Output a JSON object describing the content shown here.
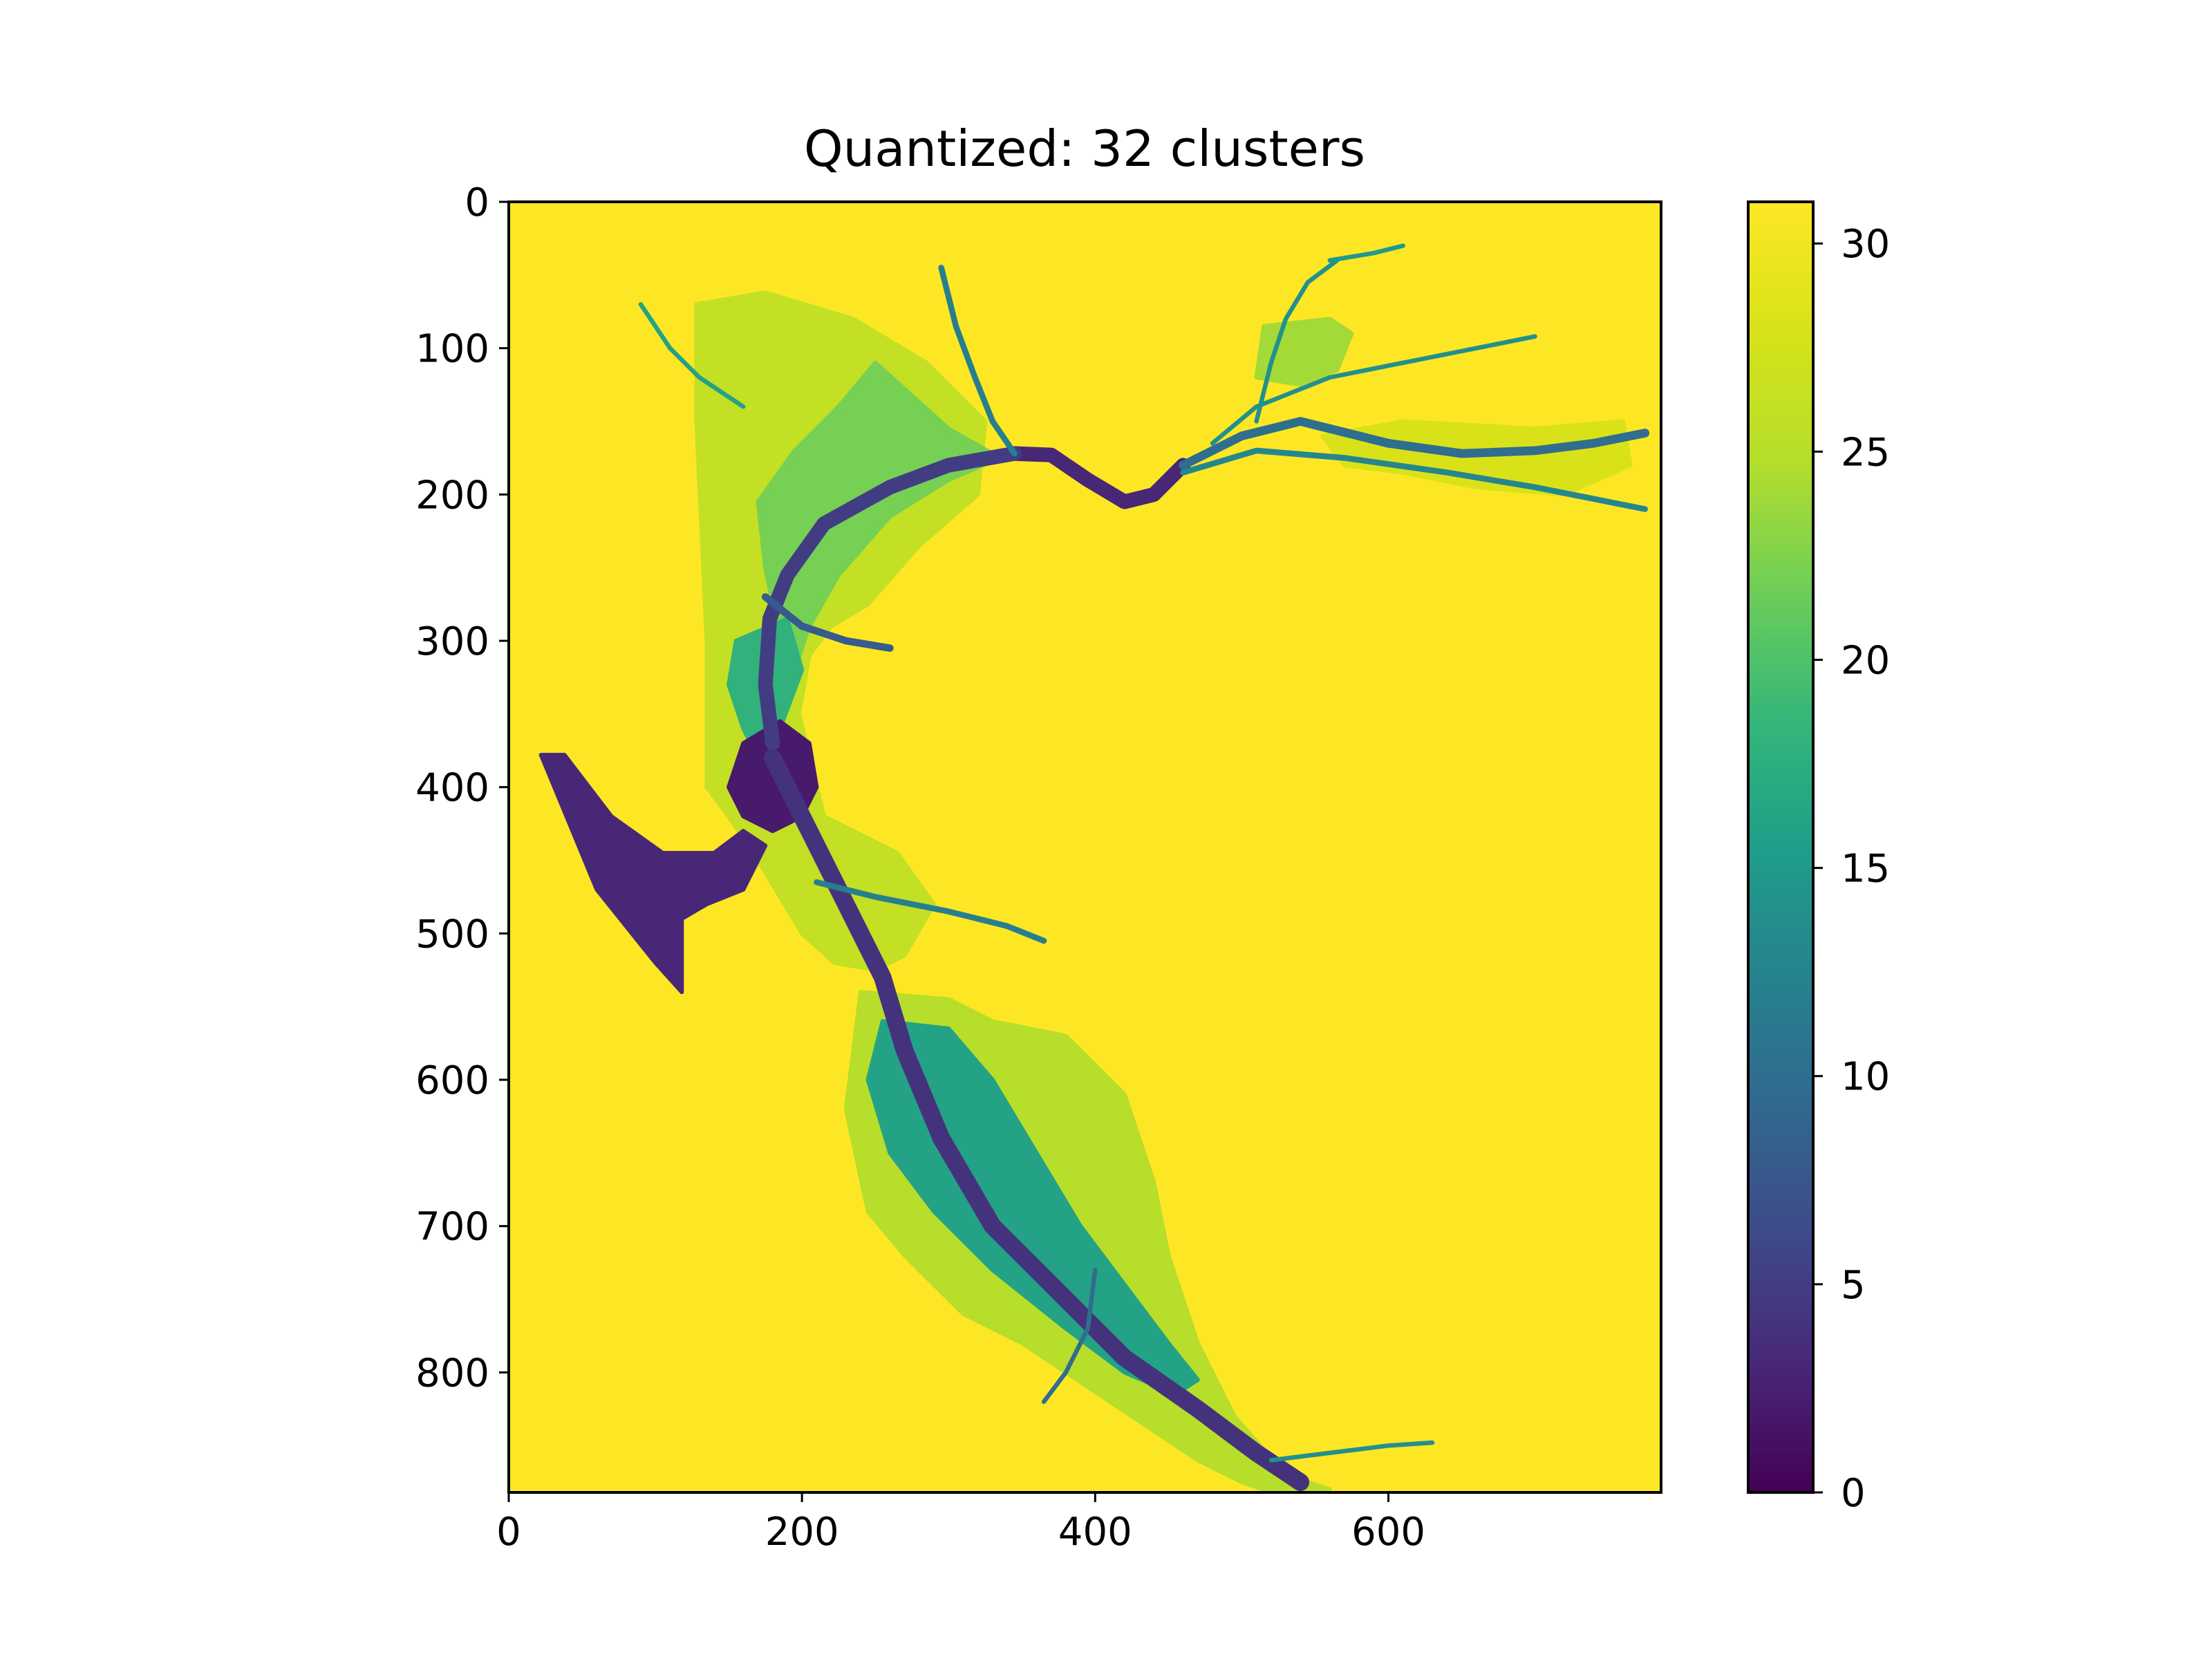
{
  "chart_data": {
    "type": "heatmap",
    "title": "Quantized: 32 clusters",
    "xlabel": "",
    "ylabel": "",
    "xlim": [
      0,
      786
    ],
    "ylim": [
      882,
      0
    ],
    "x_ticks": [
      0,
      200,
      400,
      600
    ],
    "y_ticks": [
      0,
      100,
      200,
      300,
      400,
      500,
      600,
      700,
      800
    ],
    "colorbar": {
      "colormap": "viridis",
      "range": [
        0,
        31
      ],
      "ticks": [
        0,
        5,
        10,
        15,
        20,
        25,
        30
      ]
    },
    "background_value": 31,
    "colors": {
      "low": "#440154",
      "mid": "#21918c",
      "high": "#fde725"
    },
    "regions": [
      {
        "value": 26,
        "outline": [
          [
            128,
            70
          ],
          [
            175,
            62
          ],
          [
            235,
            80
          ],
          [
            285,
            110
          ],
          [
            325,
            150
          ],
          [
            320,
            200
          ],
          [
            280,
            235
          ],
          [
            245,
            275
          ],
          [
            220,
            290
          ],
          [
            205,
            310
          ],
          [
            198,
            350
          ],
          [
            215,
            420
          ],
          [
            265,
            445
          ],
          [
            290,
            480
          ],
          [
            270,
            515
          ],
          [
            250,
            525
          ],
          [
            222,
            520
          ],
          [
            200,
            500
          ],
          [
            170,
            450
          ],
          [
            150,
            420
          ],
          [
            135,
            400
          ],
          [
            135,
            300
          ],
          [
            128,
            150
          ]
        ]
      },
      {
        "value": 22,
        "outline": [
          [
            250,
            110
          ],
          [
            300,
            155
          ],
          [
            335,
            175
          ],
          [
            300,
            190
          ],
          [
            260,
            215
          ],
          [
            225,
            255
          ],
          [
            205,
            290
          ],
          [
            195,
            320
          ],
          [
            185,
            300
          ],
          [
            175,
            250
          ],
          [
            170,
            205
          ],
          [
            195,
            170
          ],
          [
            225,
            140
          ]
        ]
      },
      {
        "value": 24,
        "outline": [
          [
            515,
            85
          ],
          [
            560,
            80
          ],
          [
            575,
            90
          ],
          [
            565,
            115
          ],
          [
            540,
            125
          ],
          [
            510,
            120
          ]
        ]
      },
      {
        "value": 28,
        "outline": [
          [
            555,
            160
          ],
          [
            610,
            150
          ],
          [
            700,
            155
          ],
          [
            760,
            150
          ],
          [
            765,
            180
          ],
          [
            720,
            200
          ],
          [
            660,
            195
          ],
          [
            610,
            185
          ],
          [
            570,
            180
          ]
        ]
      },
      {
        "value": 25,
        "outline": [
          [
            240,
            540
          ],
          [
            300,
            545
          ],
          [
            330,
            560
          ],
          [
            380,
            570
          ],
          [
            420,
            610
          ],
          [
            440,
            670
          ],
          [
            450,
            720
          ],
          [
            470,
            780
          ],
          [
            495,
            830
          ],
          [
            530,
            870
          ],
          [
            560,
            880
          ],
          [
            530,
            885
          ],
          [
            500,
            875
          ],
          [
            470,
            860
          ],
          [
            440,
            840
          ],
          [
            410,
            820
          ],
          [
            380,
            800
          ],
          [
            350,
            780
          ],
          [
            310,
            760
          ],
          [
            270,
            720
          ],
          [
            245,
            690
          ],
          [
            230,
            620
          ]
        ]
      },
      {
        "value": 16,
        "outline": [
          [
            255,
            560
          ],
          [
            300,
            565
          ],
          [
            330,
            600
          ],
          [
            360,
            650
          ],
          [
            390,
            700
          ],
          [
            420,
            740
          ],
          [
            450,
            780
          ],
          [
            470,
            805
          ],
          [
            455,
            815
          ],
          [
            420,
            800
          ],
          [
            380,
            770
          ],
          [
            330,
            730
          ],
          [
            290,
            690
          ],
          [
            260,
            650
          ],
          [
            245,
            600
          ]
        ]
      },
      {
        "value": 18,
        "outline": [
          [
            155,
            300
          ],
          [
            190,
            285
          ],
          [
            200,
            320
          ],
          [
            185,
            360
          ],
          [
            170,
            380
          ],
          [
            160,
            360
          ],
          [
            150,
            330
          ]
        ]
      },
      {
        "value": 3,
        "outline": [
          [
            22,
            378
          ],
          [
            38,
            378
          ],
          [
            70,
            420
          ],
          [
            105,
            445
          ],
          [
            140,
            445
          ],
          [
            160,
            430
          ],
          [
            175,
            440
          ],
          [
            160,
            470
          ],
          [
            135,
            480
          ],
          [
            118,
            490
          ],
          [
            118,
            540
          ],
          [
            100,
            520
          ],
          [
            60,
            470
          ]
        ]
      },
      {
        "value": 2,
        "outline": [
          [
            160,
            370
          ],
          [
            185,
            355
          ],
          [
            205,
            370
          ],
          [
            210,
            400
          ],
          [
            200,
            420
          ],
          [
            180,
            430
          ],
          [
            160,
            420
          ],
          [
            150,
            400
          ]
        ]
      }
    ],
    "channels": [
      {
        "value": 3,
        "width": 10,
        "points": [
          [
            345,
            172
          ],
          [
            370,
            173
          ],
          [
            395,
            190
          ],
          [
            420,
            205
          ],
          [
            440,
            200
          ],
          [
            460,
            180
          ]
        ]
      },
      {
        "value": 5,
        "width": 10,
        "points": [
          [
            345,
            172
          ],
          [
            300,
            180
          ],
          [
            260,
            195
          ],
          [
            215,
            220
          ],
          [
            190,
            255
          ],
          [
            178,
            285
          ],
          [
            175,
            330
          ],
          [
            180,
            370
          ]
        ]
      },
      {
        "value": 4,
        "width": 12,
        "points": [
          [
            180,
            380
          ],
          [
            200,
            420
          ],
          [
            225,
            470
          ],
          [
            255,
            530
          ],
          [
            270,
            580
          ],
          [
            295,
            640
          ],
          [
            330,
            700
          ],
          [
            370,
            740
          ],
          [
            420,
            790
          ],
          [
            470,
            825
          ],
          [
            510,
            855
          ],
          [
            540,
            875
          ]
        ]
      },
      {
        "value": 10,
        "width": 6,
        "points": [
          [
            460,
            180
          ],
          [
            500,
            160
          ],
          [
            540,
            150
          ],
          [
            600,
            165
          ],
          [
            650,
            172
          ],
          [
            700,
            170
          ],
          [
            740,
            165
          ],
          [
            775,
            158
          ]
        ]
      },
      {
        "value": 13,
        "width": 4,
        "points": [
          [
            460,
            185
          ],
          [
            510,
            170
          ],
          [
            570,
            175
          ],
          [
            640,
            185
          ],
          [
            700,
            195
          ],
          [
            775,
            210
          ]
        ]
      },
      {
        "value": 14,
        "width": 3,
        "points": [
          [
            480,
            165
          ],
          [
            510,
            140
          ],
          [
            560,
            120
          ],
          [
            610,
            110
          ],
          [
            660,
            100
          ],
          [
            700,
            92
          ]
        ]
      },
      {
        "value": 12,
        "width": 4,
        "points": [
          [
            345,
            172
          ],
          [
            330,
            150
          ],
          [
            318,
            120
          ],
          [
            305,
            85
          ],
          [
            295,
            45
          ]
        ]
      },
      {
        "value": 14,
        "width": 3,
        "points": [
          [
            510,
            150
          ],
          [
            520,
            110
          ],
          [
            530,
            80
          ],
          [
            545,
            55
          ],
          [
            565,
            40
          ]
        ]
      },
      {
        "value": 15,
        "width": 3,
        "points": [
          [
            560,
            40
          ],
          [
            590,
            35
          ],
          [
            610,
            30
          ]
        ]
      },
      {
        "value": 16,
        "width": 3,
        "points": [
          [
            90,
            70
          ],
          [
            110,
            100
          ],
          [
            130,
            120
          ],
          [
            160,
            140
          ]
        ]
      },
      {
        "value": 12,
        "width": 4,
        "points": [
          [
            210,
            465
          ],
          [
            250,
            475
          ],
          [
            300,
            485
          ],
          [
            340,
            495
          ],
          [
            365,
            505
          ]
        ]
      },
      {
        "value": 8,
        "width": 5,
        "points": [
          [
            175,
            270
          ],
          [
            200,
            290
          ],
          [
            230,
            300
          ],
          [
            260,
            305
          ]
        ]
      },
      {
        "value": 10,
        "width": 3,
        "points": [
          [
            400,
            730
          ],
          [
            395,
            770
          ],
          [
            380,
            800
          ],
          [
            365,
            820
          ]
        ]
      },
      {
        "value": 14,
        "width": 3,
        "points": [
          [
            520,
            860
          ],
          [
            560,
            855
          ],
          [
            600,
            850
          ],
          [
            630,
            848
          ]
        ]
      }
    ]
  }
}
